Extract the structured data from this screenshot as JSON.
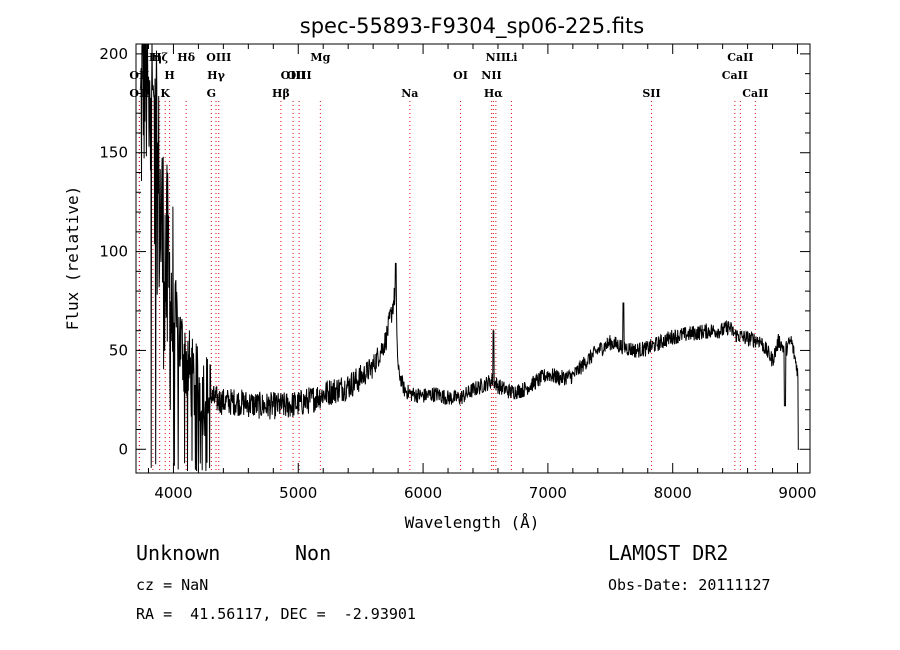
{
  "chart_data": {
    "type": "line",
    "title": "spec-55893-F9304_sp06-225.fits",
    "xlabel": "Wavelength (Å)",
    "ylabel": "Flux (relative)",
    "xlim": [
      3700,
      9100
    ],
    "ylim": [
      -12,
      205
    ],
    "xticks": [
      4000,
      5000,
      6000,
      7000,
      8000,
      9000
    ],
    "yticks": [
      0,
      50,
      100,
      150,
      200
    ],
    "series": [
      {
        "x": [
          3700,
          3760,
          3800,
          3840,
          3880,
          3920,
          3960,
          4000,
          4050,
          4100,
          4150,
          4200,
          4250,
          4300,
          4350,
          4400,
          4500,
          4600,
          4700,
          4800,
          4900,
          5000,
          5100,
          5200,
          5300,
          5400,
          5500,
          5600,
          5700,
          5750,
          5780,
          5800,
          5850,
          5900,
          6000,
          6100,
          6200,
          6300,
          6400,
          6500,
          6560,
          6600,
          6700,
          6800,
          6900,
          7000,
          7100,
          7200,
          7300,
          7400,
          7500,
          7600,
          7700,
          7800,
          7900,
          8000,
          8100,
          8200,
          8300,
          8400,
          8450,
          8500,
          8600,
          8700,
          8750,
          8800,
          8850,
          8900,
          8950,
          9000,
          9020
        ],
        "y": [
          120,
          195,
          185,
          160,
          130,
          100,
          80,
          70,
          55,
          45,
          35,
          30,
          28,
          26,
          25,
          24,
          24,
          23,
          22,
          22,
          22,
          23,
          25,
          28,
          30,
          32,
          36,
          42,
          55,
          70,
          80,
          40,
          30,
          28,
          27,
          28,
          26,
          26,
          30,
          33,
          35,
          32,
          29,
          30,
          34,
          38,
          36,
          37,
          44,
          50,
          54,
          52,
          50,
          51,
          54,
          57,
          58,
          59,
          60,
          60,
          62,
          58,
          56,
          55,
          50,
          45,
          55,
          50,
          55,
          40,
          0
        ]
      }
    ],
    "lines": [
      {
        "wave": 3727,
        "label": "OII",
        "row": 2
      },
      {
        "wave": 3727,
        "label": "OII",
        "row": 3
      },
      {
        "wave": 3835,
        "label": "Hη",
        "row": 1
      },
      {
        "wave": 3889,
        "label": "Hζ",
        "row": 1
      },
      {
        "wave": 3934,
        "label": "K",
        "row": 3
      },
      {
        "wave": 3969,
        "label": "H",
        "row": 2
      },
      {
        "wave": 4102,
        "label": "Hδ",
        "row": 1
      },
      {
        "wave": 4304,
        "label": "G",
        "row": 3
      },
      {
        "wave": 4341,
        "label": "Hγ",
        "row": 2
      },
      {
        "wave": 4363,
        "label": "OIII",
        "row": 1
      },
      {
        "wave": 4861,
        "label": "Hβ",
        "row": 3
      },
      {
        "wave": 4959,
        "label": "OIII",
        "row": 2
      },
      {
        "wave": 5007,
        "label": "OIII",
        "row": 2
      },
      {
        "wave": 5177,
        "label": "Mg",
        "row": 1
      },
      {
        "wave": 5894,
        "label": "Na",
        "row": 3
      },
      {
        "wave": 6300,
        "label": "OI",
        "row": 2
      },
      {
        "wave": 6548,
        "label": "NII",
        "row": 2
      },
      {
        "wave": 6563,
        "label": "Hα",
        "row": 3
      },
      {
        "wave": 6583,
        "label": "NII",
        "row": 1
      },
      {
        "wave": 6708,
        "label": "Li",
        "row": 1
      },
      {
        "wave": 7830,
        "label": "SII",
        "row": 3
      },
      {
        "wave": 8498,
        "label": "CaII",
        "row": 2
      },
      {
        "wave": 8542,
        "label": "CaII",
        "row": 1
      },
      {
        "wave": 8662,
        "label": "CaII",
        "row": 3
      }
    ]
  },
  "info": {
    "class": "Unknown",
    "subclass": "Non",
    "survey": "LAMOST DR2",
    "cz": "cz = NaN",
    "obs_date": "Obs-Date: 20111127",
    "radec": "RA =  41.56117, DEC =  -2.93901"
  }
}
